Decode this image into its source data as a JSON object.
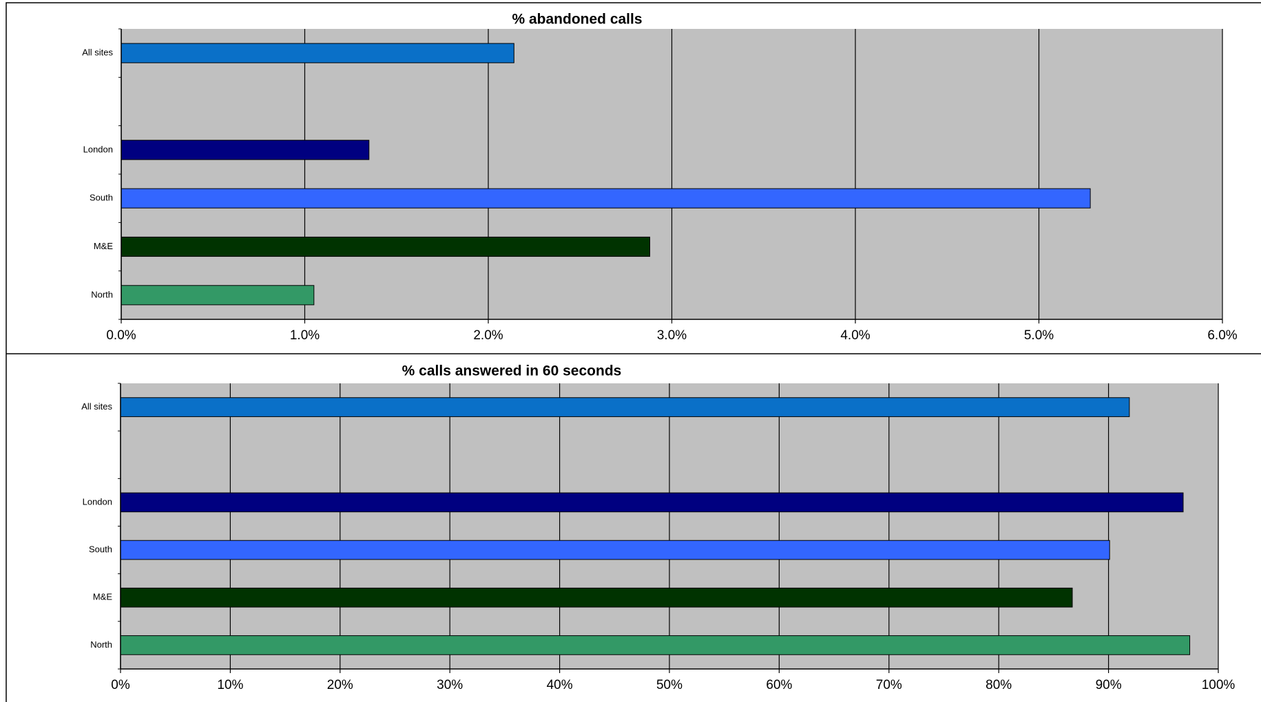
{
  "chart_data": [
    {
      "type": "bar",
      "orientation": "horizontal",
      "title": "% abandoned calls",
      "categories": [
        "All sites",
        null,
        "London",
        "South",
        "M&E",
        "North"
      ],
      "values": [
        2.14,
        null,
        1.35,
        5.28,
        2.88,
        1.05
      ],
      "colors": [
        "#0a70c8",
        null,
        "#000080",
        "#3366ff",
        "#003300",
        "#339966"
      ],
      "xlim": [
        0,
        6
      ],
      "xticks": [
        {
          "value": 0,
          "label": "0.0%"
        },
        {
          "value": 1,
          "label": "1.0%"
        },
        {
          "value": 2,
          "label": "2.0%"
        },
        {
          "value": 3,
          "label": "3.0%"
        },
        {
          "value": 4,
          "label": "4.0%"
        },
        {
          "value": 5,
          "label": "5.0%"
        },
        {
          "value": 6,
          "label": "6.0%"
        }
      ],
      "grid": true
    },
    {
      "type": "bar",
      "orientation": "horizontal",
      "title": "% calls answered in 60 seconds",
      "categories": [
        "All sites",
        null,
        "London",
        "South",
        "M&E",
        "North"
      ],
      "values": [
        91.9,
        null,
        96.8,
        90.1,
        86.7,
        97.4
      ],
      "colors": [
        "#0a70c8",
        null,
        "#000080",
        "#3366ff",
        "#003300",
        "#339966"
      ],
      "xlim": [
        0,
        100
      ],
      "xticks": [
        {
          "value": 0,
          "label": "0%"
        },
        {
          "value": 10,
          "label": "10%"
        },
        {
          "value": 20,
          "label": "20%"
        },
        {
          "value": 30,
          "label": "30%"
        },
        {
          "value": 40,
          "label": "40%"
        },
        {
          "value": 50,
          "label": "50%"
        },
        {
          "value": 60,
          "label": "60%"
        },
        {
          "value": 70,
          "label": "70%"
        },
        {
          "value": 80,
          "label": "80%"
        },
        {
          "value": 90,
          "label": "90%"
        },
        {
          "value": 100,
          "label": "100%"
        }
      ],
      "grid": true
    }
  ]
}
